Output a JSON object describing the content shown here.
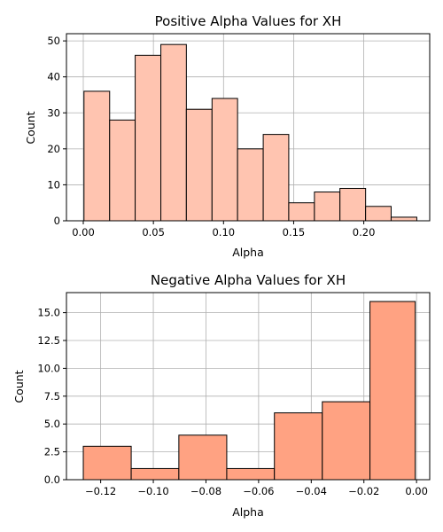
{
  "chart_data": [
    {
      "type": "bar",
      "title": "Positive Alpha Values for XH",
      "xlabel": "Alpha",
      "ylabel": "Count",
      "xlim": [
        -0.012,
        0.247
      ],
      "ylim": [
        0,
        52
      ],
      "xticks": [
        0.0,
        0.05,
        0.1,
        0.15,
        0.2
      ],
      "xtick_labels": [
        "0.00",
        "0.05",
        "0.10",
        "0.15",
        "0.20"
      ],
      "yticks": [
        0,
        10,
        20,
        30,
        40,
        50
      ],
      "ytick_labels": [
        "0",
        "10",
        "20",
        "30",
        "40",
        "50"
      ],
      "bin_edges": [
        0.0005,
        0.0188,
        0.037,
        0.0553,
        0.0735,
        0.0918,
        0.11,
        0.1283,
        0.1465,
        0.1648,
        0.183,
        0.2013,
        0.2195,
        0.2378
      ],
      "values": [
        36,
        28,
        46,
        49,
        31,
        34,
        20,
        24,
        5,
        8,
        9,
        4,
        1
      ],
      "bar_color": "#ffc4b0",
      "grid": true
    },
    {
      "type": "bar",
      "title": "Negative Alpha Values for XH",
      "xlabel": "Alpha",
      "ylabel": "Count",
      "xlim": [
        -0.133,
        0.005
      ],
      "ylim": [
        0,
        16.8
      ],
      "xticks": [
        -0.12,
        -0.1,
        -0.08,
        -0.06,
        -0.04,
        -0.02,
        0.0
      ],
      "xtick_labels": [
        "−0.12",
        "−0.10",
        "−0.08",
        "−0.06",
        "−0.04",
        "−0.02",
        "0.00"
      ],
      "yticks": [
        0,
        2.5,
        5,
        7.5,
        10,
        12.5,
        15
      ],
      "ytick_labels": [
        "0.0",
        "2.5",
        "5.0",
        "7.5",
        "10.0",
        "12.5",
        "15.0"
      ],
      "bin_edges": [
        -0.1266,
        -0.1084,
        -0.0903,
        -0.0721,
        -0.054,
        -0.0358,
        -0.0177,
        -0.0005
      ],
      "values": [
        3,
        1,
        4,
        1,
        6,
        7,
        16
      ],
      "bar_color": "#ffa282",
      "grid": true
    }
  ]
}
